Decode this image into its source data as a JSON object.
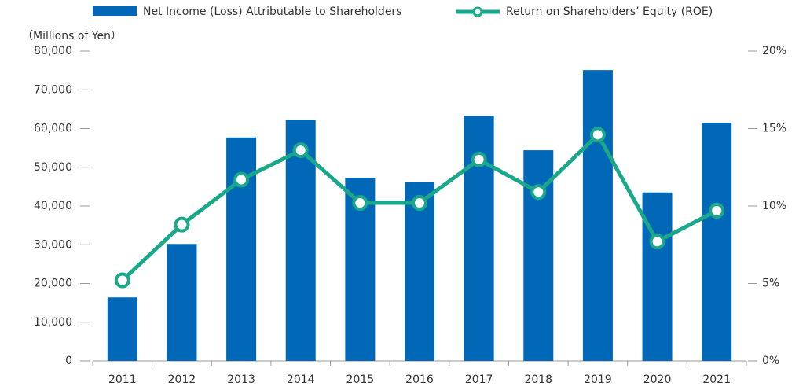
{
  "chart_data": {
    "type": "bar",
    "y_label": "（Millions of Yen）",
    "categories": [
      "2011",
      "2012",
      "2013",
      "2014",
      "2015",
      "2016",
      "2017",
      "2018",
      "2019",
      "2020",
      "2021"
    ],
    "series": [
      {
        "name": "Net Income (Loss) Attributable to Shareholders",
        "type": "bar",
        "color": "#0068b7",
        "values": [
          16400,
          30200,
          57700,
          62300,
          47300,
          46100,
          63300,
          54400,
          75100,
          43500,
          61500
        ]
      },
      {
        "name": "Return on Shareholders’ Equity (ROE)",
        "type": "line",
        "axis": "y2",
        "color": "#1aa88a",
        "values": [
          5.2,
          8.8,
          11.7,
          13.6,
          10.2,
          10.2,
          13.0,
          10.9,
          14.6,
          7.7,
          9.7
        ]
      }
    ],
    "ylim": [
      0,
      80000
    ],
    "yticks": [
      0,
      {
        "value": 10000,
        "label": "10,000"
      },
      {
        "value": 20000,
        "label": "20,000"
      },
      {
        "value": 30000,
        "label": "30,000"
      },
      {
        "value": 40000,
        "label": "40,000"
      },
      {
        "value": 50000,
        "label": "50,000"
      },
      {
        "value": 60000,
        "label": "60,000"
      },
      {
        "value": 70000,
        "label": "70,000"
      },
      {
        "value": 80000,
        "label": "80,000"
      }
    ],
    "y2lim": [
      0,
      20
    ],
    "y2ticks": [
      {
        "value": 0,
        "label": "0%"
      },
      {
        "value": 5,
        "label": "5%"
      },
      {
        "value": 10,
        "label": "10%"
      },
      {
        "value": 15,
        "label": "15%"
      },
      {
        "value": 20,
        "label": "20%"
      }
    ],
    "legend": "top"
  }
}
